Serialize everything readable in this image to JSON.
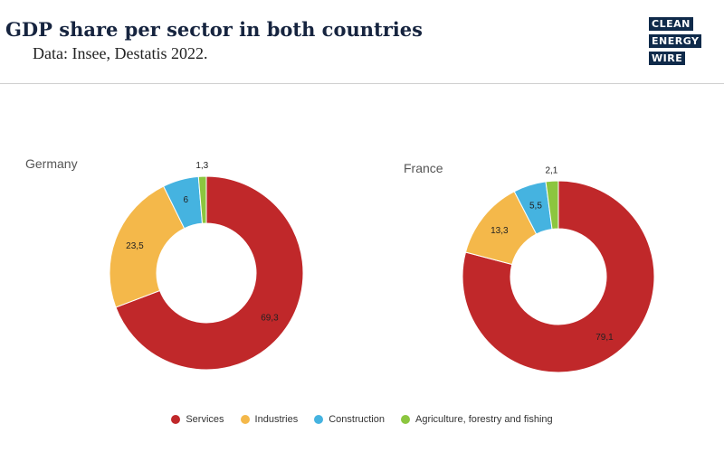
{
  "header": {
    "title": "GDP share per sector in both countries",
    "subtitle": "Data: Insee, Destatis 2022.",
    "logo_lines": [
      "CLEAN",
      "ENERGY",
      "WIRE"
    ]
  },
  "colors": {
    "Services": "#c0282a",
    "Industries": "#f4b84a",
    "Construction": "#45b3e0",
    "Agriculture, forestry and fishing": "#8cc63f"
  },
  "chart_data": [
    {
      "type": "pie",
      "title": "Germany",
      "categories": [
        "Services",
        "Industries",
        "Construction",
        "Agriculture, forestry and fishing"
      ],
      "values": [
        69.3,
        23.5,
        6,
        1.3
      ],
      "labels": [
        "69,3",
        "23,5",
        "6",
        "1,3"
      ]
    },
    {
      "type": "pie",
      "title": "France",
      "categories": [
        "Services",
        "Industries",
        "Construction",
        "Agriculture, forestry and fishing"
      ],
      "values": [
        79.1,
        13.3,
        5.5,
        2.1
      ],
      "labels": [
        "79,1",
        "13,3",
        "5,5",
        "2,1"
      ]
    }
  ],
  "legend": [
    "Services",
    "Industries",
    "Construction",
    "Agriculture, forestry and fishing"
  ]
}
